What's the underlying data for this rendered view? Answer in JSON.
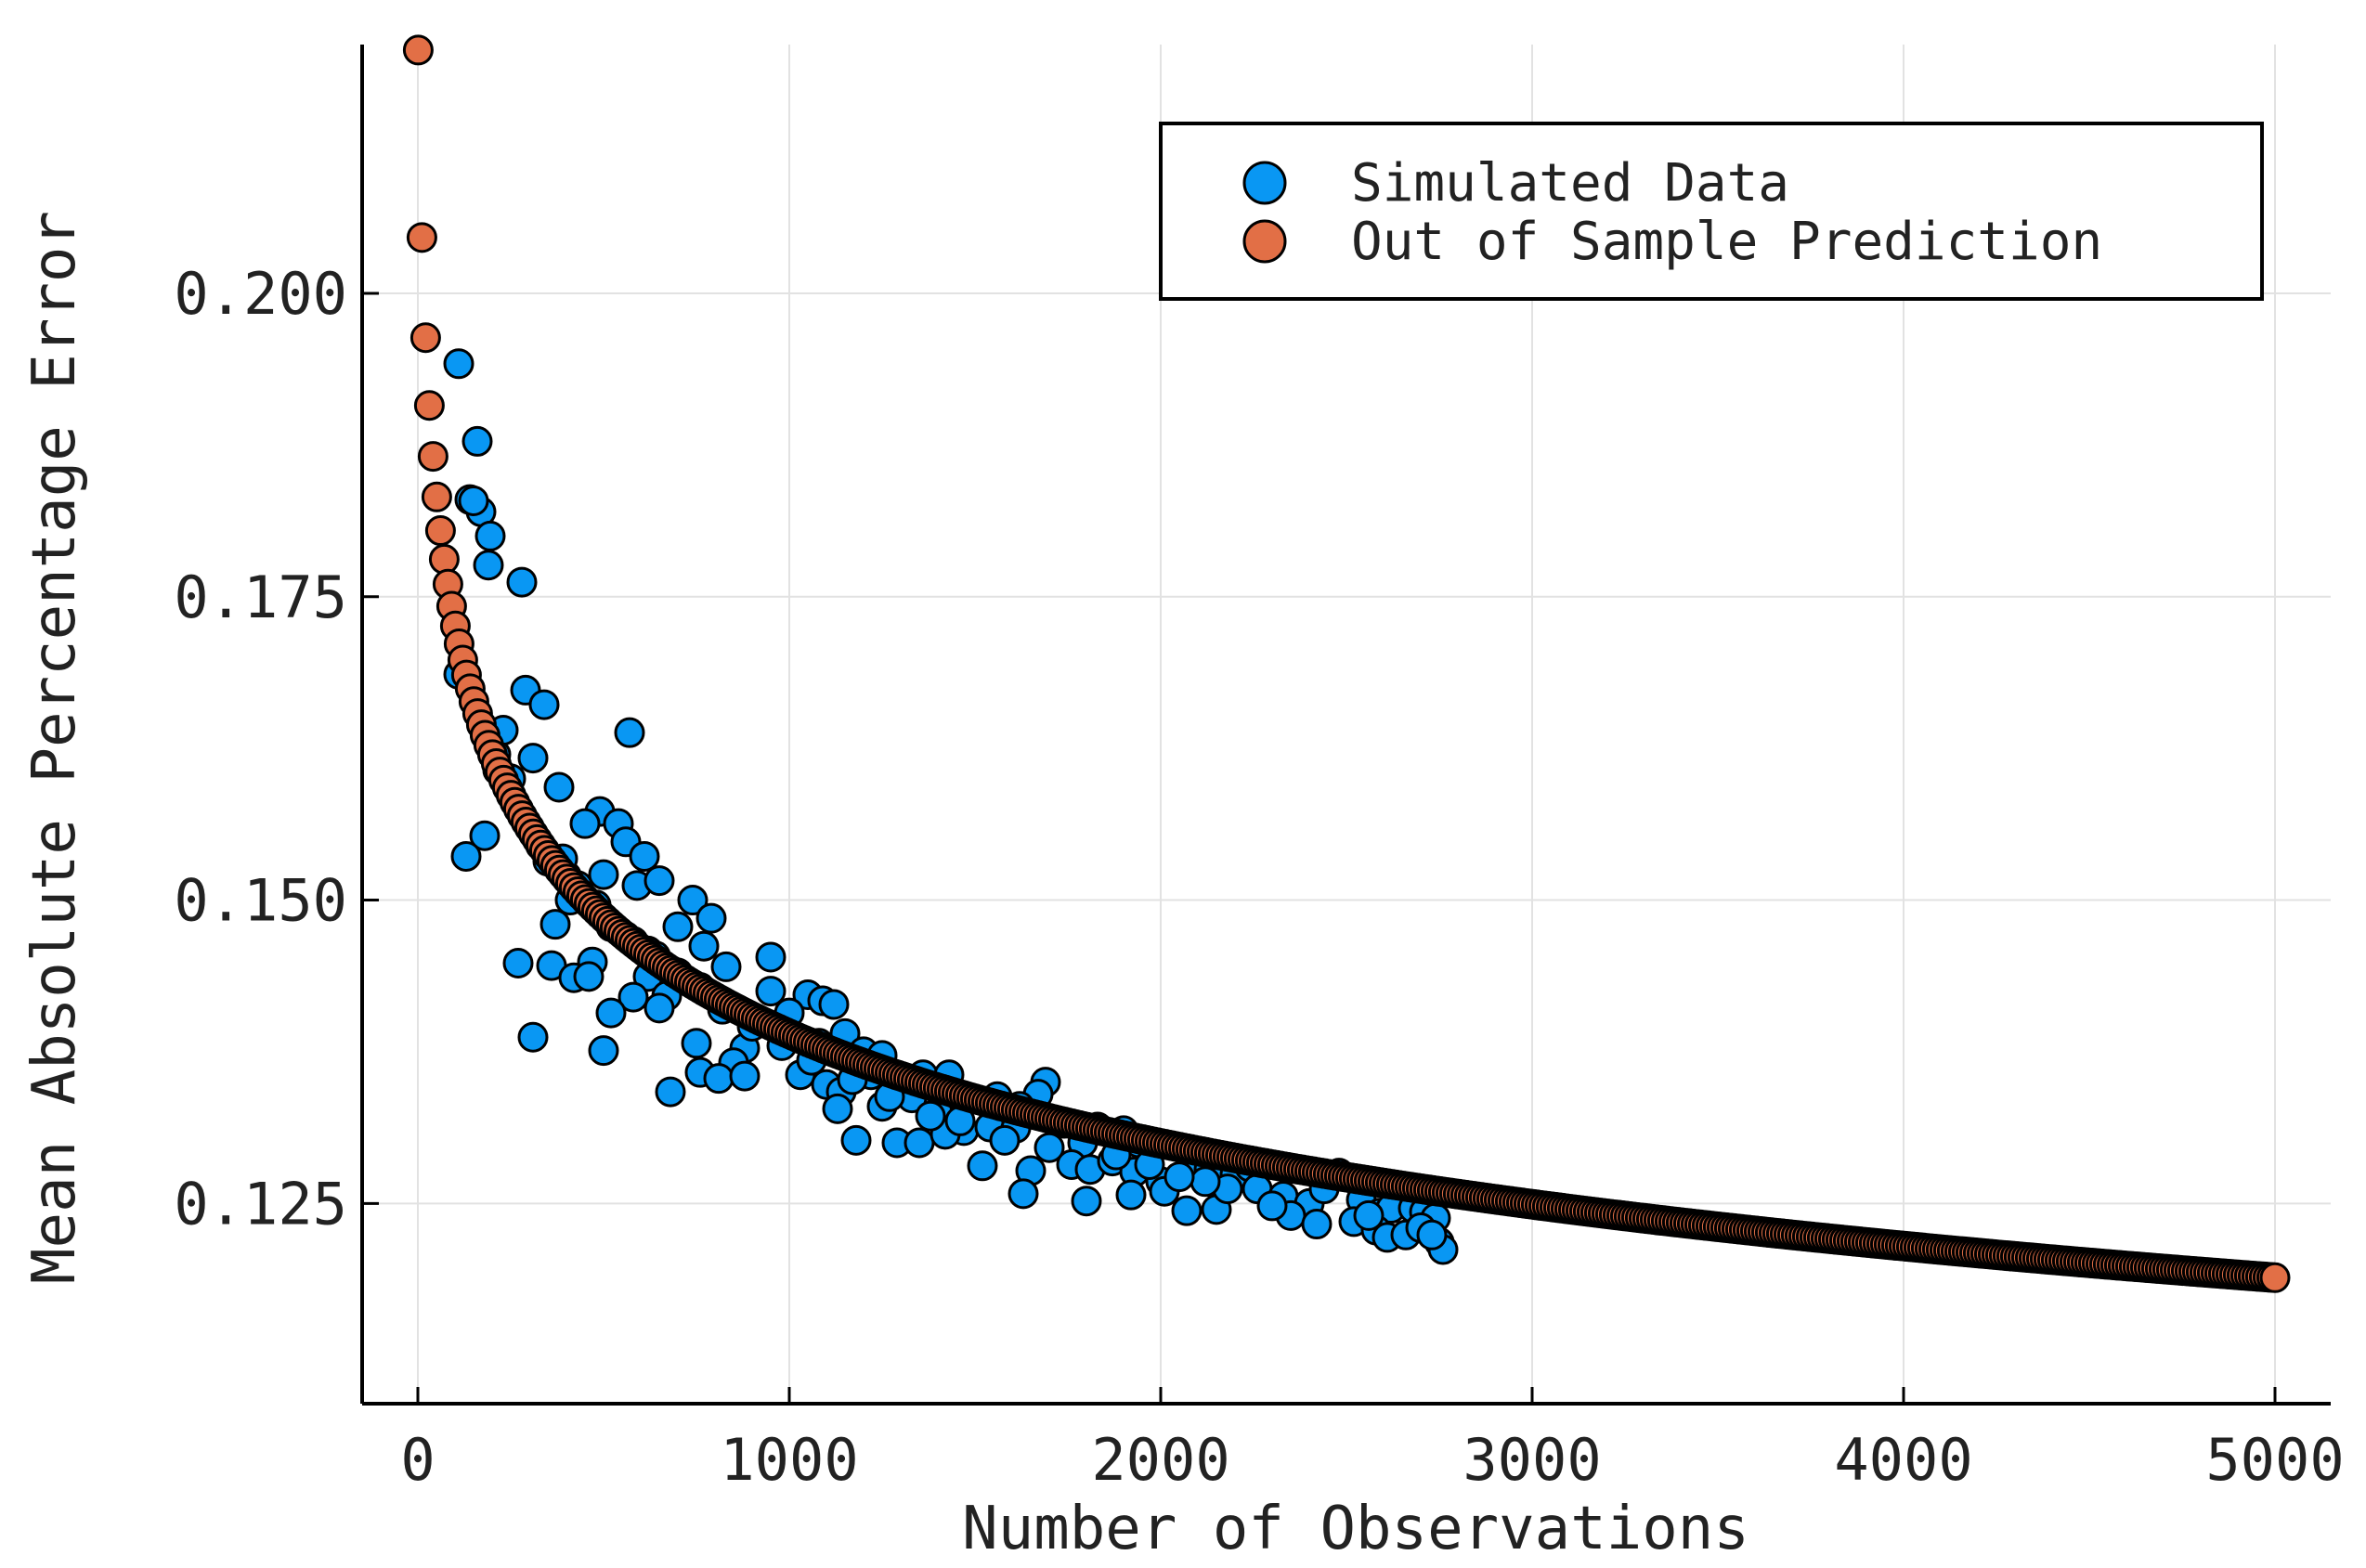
{
  "chart_data": {
    "type": "scatter",
    "xlabel": "Number of Observations",
    "ylabel": "Mean Absolute Percentage Error",
    "xlim": [
      -150,
      5150
    ],
    "ylim": [
      0.1085,
      0.2205
    ],
    "x_ticks": [
      0,
      1000,
      2000,
      3000,
      4000,
      5000
    ],
    "x_tick_labels": [
      "0",
      "1000",
      "2000",
      "3000",
      "4000",
      "5000"
    ],
    "y_ticks": [
      0.125,
      0.15,
      0.175,
      0.2
    ],
    "y_tick_labels": [
      "0.125",
      "0.150",
      "0.175",
      "0.200"
    ],
    "grid": true,
    "legend_position": "top-right",
    "series": [
      {
        "name": "Simulated Data",
        "color": "#0997f3",
        "points": [
          [
            110,
            0.1942
          ],
          [
            160,
            0.1878
          ],
          [
            140,
            0.183
          ],
          [
            170,
            0.182
          ],
          [
            150,
            0.1829
          ],
          [
            195,
            0.18
          ],
          [
            190,
            0.1776
          ],
          [
            280,
            0.1762
          ],
          [
            110,
            0.1686
          ],
          [
            290,
            0.1673
          ],
          [
            340,
            0.1661
          ],
          [
            210,
            0.162
          ],
          [
            215,
            0.1607
          ],
          [
            310,
            0.1617
          ],
          [
            570,
            0.1638
          ],
          [
            380,
            0.1593
          ],
          [
            490,
            0.1573
          ],
          [
            540,
            0.1563
          ],
          [
            450,
            0.1563
          ],
          [
            180,
            0.1553
          ],
          [
            130,
            0.1536
          ],
          [
            330,
            0.1545
          ],
          [
            350,
            0.1532
          ],
          [
            560,
            0.1548
          ],
          [
            610,
            0.1536
          ],
          [
            500,
            0.1521
          ],
          [
            400,
            0.152
          ],
          [
            590,
            0.1512
          ],
          [
            650,
            0.1516
          ],
          [
            410,
            0.15
          ],
          [
            740,
            0.15
          ],
          [
            790,
            0.1485
          ],
          [
            520,
            0.1478
          ],
          [
            370,
            0.148
          ],
          [
            700,
            0.1478
          ],
          [
            580,
            0.1466
          ],
          [
            620,
            0.1458
          ],
          [
            770,
            0.1462
          ],
          [
            830,
            0.1445
          ],
          [
            950,
            0.1453
          ],
          [
            270,
            0.1448
          ],
          [
            360,
            0.1446
          ],
          [
            470,
            0.1449
          ],
          [
            420,
            0.1436
          ],
          [
            460,
            0.1437
          ],
          [
            620,
            0.1437
          ],
          [
            670,
            0.1421
          ],
          [
            580,
            0.142
          ],
          [
            650,
            0.1411
          ],
          [
            820,
            0.1412
          ],
          [
            950,
            0.1425
          ],
          [
            1050,
            0.1422
          ],
          [
            1090,
            0.1417
          ],
          [
            1120,
            0.1414
          ],
          [
            1000,
            0.1407
          ],
          [
            520,
            0.1407
          ],
          [
            310,
            0.1387
          ],
          [
            750,
            0.1382
          ],
          [
            880,
            0.1378
          ],
          [
            990,
            0.1388
          ],
          [
            500,
            0.1376
          ],
          [
            850,
            0.1366
          ],
          [
            760,
            0.1358
          ],
          [
            810,
            0.1353
          ],
          [
            880,
            0.1355
          ],
          [
            1030,
            0.1356
          ],
          [
            1150,
            0.139
          ],
          [
            1080,
            0.1382
          ],
          [
            1200,
            0.1375
          ],
          [
            1250,
            0.1372
          ],
          [
            1100,
            0.1348
          ],
          [
            1140,
            0.1342
          ],
          [
            1220,
            0.1356
          ],
          [
            1300,
            0.1352
          ],
          [
            1360,
            0.1356
          ],
          [
            1430,
            0.1356
          ],
          [
            680,
            0.1342
          ],
          [
            1130,
            0.1328
          ],
          [
            1250,
            0.133
          ],
          [
            1330,
            0.1337
          ],
          [
            1400,
            0.1325
          ],
          [
            1560,
            0.1338
          ],
          [
            1690,
            0.135
          ],
          [
            1670,
            0.134
          ],
          [
            1620,
            0.133
          ],
          [
            1470,
            0.131
          ],
          [
            1540,
            0.1313
          ],
          [
            1180,
            0.1302
          ],
          [
            1290,
            0.13
          ],
          [
            1350,
            0.13
          ],
          [
            1420,
            0.1307
          ],
          [
            1610,
            0.1312
          ],
          [
            1740,
            0.1316
          ],
          [
            1790,
            0.13
          ],
          [
            1830,
            0.1313
          ],
          [
            1900,
            0.131
          ],
          [
            1940,
            0.13
          ],
          [
            1990,
            0.1297
          ],
          [
            1520,
            0.1281
          ],
          [
            1650,
            0.1277
          ],
          [
            1760,
            0.1282
          ],
          [
            1810,
            0.1278
          ],
          [
            1870,
            0.1285
          ],
          [
            1930,
            0.1276
          ],
          [
            2000,
            0.1268
          ],
          [
            2080,
            0.128
          ],
          [
            2130,
            0.1278
          ],
          [
            2200,
            0.1274
          ],
          [
            2240,
            0.128
          ],
          [
            1630,
            0.1258
          ],
          [
            1800,
            0.1252
          ],
          [
            1920,
            0.1257
          ],
          [
            2010,
            0.126
          ],
          [
            2070,
            0.1244
          ],
          [
            2150,
            0.1245
          ],
          [
            2260,
            0.1262
          ],
          [
            2330,
            0.1256
          ],
          [
            2400,
            0.125
          ],
          [
            2480,
            0.1275
          ],
          [
            2440,
            0.1262
          ],
          [
            2540,
            0.1253
          ],
          [
            2590,
            0.1242
          ],
          [
            2620,
            0.1246
          ],
          [
            2680,
            0.1246
          ],
          [
            2710,
            0.1243
          ],
          [
            2740,
            0.1238
          ],
          [
            2350,
            0.124
          ],
          [
            2420,
            0.1233
          ],
          [
            2520,
            0.1235
          ],
          [
            2580,
            0.1228
          ],
          [
            2610,
            0.1222
          ],
          [
            2660,
            0.1224
          ],
          [
            2700,
            0.123
          ],
          [
            2750,
            0.1218
          ],
          [
            2760,
            0.1212
          ],
          [
            2730,
            0.1224
          ],
          [
            2560,
            0.124
          ],
          [
            2300,
            0.1248
          ],
          [
            2180,
            0.1262
          ],
          [
            2120,
            0.1268
          ],
          [
            2050,
            0.1272
          ],
          [
            1970,
            0.1282
          ],
          [
            1880,
            0.129
          ],
          [
            1700,
            0.1296
          ],
          [
            1580,
            0.1302
          ],
          [
            1460,
            0.1318
          ],
          [
            1380,
            0.1322
          ],
          [
            1270,
            0.1338
          ],
          [
            1170,
            0.1352
          ],
          [
            1060,
            0.1368
          ],
          [
            980,
            0.138
          ],
          [
            900,
            0.1396
          ],
          [
            820,
            0.141
          ],
          [
            760,
            0.1428
          ],
          [
            700,
            0.144
          ],
          [
            640,
            0.1454
          ],
          [
            560,
            0.147
          ],
          [
            480,
            0.1496
          ],
          [
            430,
            0.1512
          ],
          [
            390,
            0.1534
          ],
          [
            300,
            0.156
          ],
          [
            250,
            0.16
          ],
          [
            230,
            0.164
          ]
        ]
      },
      {
        "name": "Out of Sample Prediction",
        "color": "#e26f46",
        "model": "mape = 0.2178 * ((n + 8) / 10) ^ -0.0974",
        "x_start": 1,
        "x_end": 5000,
        "x_step": 10
      }
    ]
  }
}
